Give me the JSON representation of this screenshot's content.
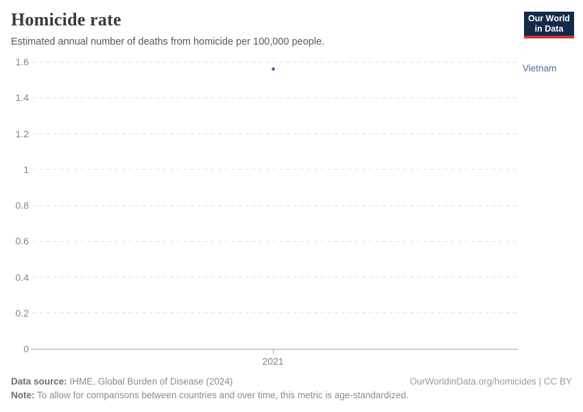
{
  "header": {
    "title": "Homicide rate",
    "subtitle": "Estimated annual number of deaths from homicide per 100,000 people.",
    "logo": {
      "line1": "Our World",
      "line2": "in Data",
      "bg_color": "#15294b",
      "stripe_color": "#d0343f"
    }
  },
  "chart_data": {
    "type": "scatter",
    "series": [
      {
        "name": "Vietnam",
        "color": "#4c6a9c",
        "points": [
          {
            "x": 2021,
            "y": 1.56
          }
        ]
      }
    ],
    "title": "Homicide rate",
    "xlabel": "",
    "ylabel": "",
    "x_ticks": [
      "2021"
    ],
    "y_ticks": [
      "1.6",
      "1.4",
      "1.2",
      "1",
      "0.8",
      "0.6",
      "0.4",
      "0.2",
      "0"
    ],
    "ylim": [
      0,
      1.6
    ],
    "grid": "horizontal-dashed",
    "legend_position": "right-entity-label",
    "entity_label": "Vietnam"
  },
  "footer": {
    "source_label": "Data source:",
    "source_text": " IHME, Global Burden of Disease (2024)",
    "note_label": "Note:",
    "note_text": " To allow for comparisons between countries and over time, this metric is age-standardized.",
    "attribution": "OurWorldinData.org/homicides | CC BY"
  }
}
